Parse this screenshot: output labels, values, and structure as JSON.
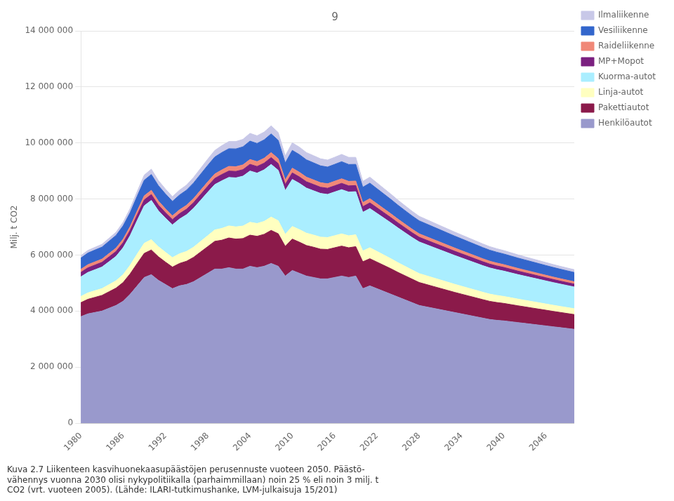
{
  "chart_data": {
    "type": "area",
    "stacked": true,
    "title": "9",
    "ylabel": "Milj. t CO2",
    "annotations": [
      "Kuva 2.7 Liikenteen kasvihuonekaasupäästöjen perusennuste vuoteen 2050. Päästö-",
      "vähennys vuonna 2030 olisi nykypolitiikalla (parhaimmillaan) noin 25 % eli noin 3 milj. t",
      "CO2 (vrt. vuoteen 2005). (Lähde: ILARI-tutkimushanke, LVM-julkaisuja 15/201)"
    ],
    "x": [
      1980,
      1981,
      1982,
      1983,
      1984,
      1985,
      1986,
      1987,
      1988,
      1989,
      1990,
      1991,
      1992,
      1993,
      1994,
      1995,
      1996,
      1997,
      1998,
      1999,
      2000,
      2001,
      2002,
      2003,
      2004,
      2005,
      2006,
      2007,
      2008,
      2009,
      2010,
      2011,
      2012,
      2013,
      2014,
      2015,
      2016,
      2017,
      2018,
      2019,
      2020,
      2021,
      2022,
      2023,
      2024,
      2025,
      2026,
      2027,
      2028,
      2029,
      2030,
      2031,
      2032,
      2033,
      2034,
      2035,
      2036,
      2037,
      2038,
      2039,
      2040,
      2041,
      2042,
      2043,
      2044,
      2045,
      2046,
      2047,
      2048,
      2049,
      2050
    ],
    "series": [
      {
        "name": "Henkilöautot",
        "color": "#9999cc",
        "values": [
          3800000,
          3900000,
          3950000,
          4000000,
          4100000,
          4200000,
          4350000,
          4600000,
          4900000,
          5200000,
          5300000,
          5100000,
          4950000,
          4800000,
          4900000,
          4950000,
          5050000,
          5200000,
          5350000,
          5500000,
          5500000,
          5550000,
          5500000,
          5500000,
          5600000,
          5550000,
          5600000,
          5700000,
          5600000,
          5250000,
          5450000,
          5350000,
          5250000,
          5200000,
          5150000,
          5150000,
          5200000,
          5250000,
          5200000,
          5250000,
          4800000,
          4900000,
          4800000,
          4700000,
          4600000,
          4500000,
          4400000,
          4300000,
          4200000,
          4150000,
          4100000,
          4050000,
          4000000,
          3950000,
          3900000,
          3850000,
          3800000,
          3750000,
          3700000,
          3670000,
          3650000,
          3620000,
          3590000,
          3560000,
          3530000,
          3500000,
          3470000,
          3440000,
          3410000,
          3380000,
          3350000
        ]
      },
      {
        "name": "Pakettiautot",
        "color": "#8b1a4a",
        "values": [
          500000,
          520000,
          540000,
          560000,
          590000,
          620000,
          670000,
          730000,
          800000,
          860000,
          880000,
          840000,
          800000,
          770000,
          800000,
          830000,
          870000,
          910000,
          950000,
          990000,
          1030000,
          1060000,
          1070000,
          1090000,
          1110000,
          1120000,
          1140000,
          1180000,
          1160000,
          1060000,
          1120000,
          1110000,
          1090000,
          1080000,
          1060000,
          1050000,
          1060000,
          1070000,
          1060000,
          1050000,
          960000,
          970000,
          950000,
          930000,
          910000,
          880000,
          860000,
          840000,
          820000,
          800000,
          780000,
          760000,
          740000,
          720000,
          705000,
          690000,
          675000,
          660000,
          648000,
          636000,
          624000,
          612000,
          600000,
          590000,
          580000,
          570000,
          560000,
          550000,
          542000,
          534000,
          526000
        ]
      },
      {
        "name": "Linja-autot",
        "color": "#ffffc0",
        "values": [
          220000,
          228000,
          235000,
          242000,
          252000,
          262000,
          280000,
          305000,
          335000,
          360000,
          370000,
          360000,
          348000,
          338000,
          345000,
          350000,
          360000,
          375000,
          390000,
          405000,
          420000,
          430000,
          435000,
          445000,
          460000,
          455000,
          460000,
          475000,
          465000,
          430000,
          450000,
          448000,
          440000,
          435000,
          430000,
          425000,
          430000,
          435000,
          428000,
          422000,
          385000,
          390000,
          380000,
          368000,
          357000,
          346000,
          335000,
          325000,
          318000,
          312000,
          306000,
          300000,
          294000,
          288000,
          282000,
          276000,
          270000,
          264000,
          258000,
          253000,
          248000,
          243000,
          238000,
          234000,
          230000,
          226000,
          222000,
          218000,
          214000,
          211000,
          208000
        ]
      },
      {
        "name": "Kuorma-autot",
        "color": "#aaeeff",
        "values": [
          700000,
          730000,
          750000,
          770000,
          820000,
          870000,
          960000,
          1060000,
          1200000,
          1340000,
          1400000,
          1280000,
          1220000,
          1170000,
          1240000,
          1310000,
          1390000,
          1470000,
          1550000,
          1620000,
          1700000,
          1730000,
          1750000,
          1780000,
          1830000,
          1800000,
          1840000,
          1880000,
          1800000,
          1560000,
          1680000,
          1650000,
          1610000,
          1580000,
          1560000,
          1540000,
          1560000,
          1580000,
          1560000,
          1540000,
          1380000,
          1400000,
          1360000,
          1320000,
          1280000,
          1240000,
          1200000,
          1160000,
          1130000,
          1110000,
          1090000,
          1070000,
          1050000,
          1030000,
          1010000,
          990000,
          970000,
          950000,
          935000,
          920000,
          905000,
          890000,
          875000,
          862000,
          849000,
          836000,
          823000,
          810000,
          798000,
          787000,
          776000
        ]
      },
      {
        "name": "MP+Mopot",
        "color": "#7b2080",
        "values": [
          160000,
          165000,
          167000,
          168000,
          172000,
          176000,
          183000,
          191000,
          200000,
          208000,
          210000,
          203000,
          195000,
          188000,
          192000,
          196000,
          202000,
          208000,
          214000,
          219000,
          224000,
          228000,
          230000,
          233000,
          238000,
          236000,
          239000,
          244000,
          240000,
          220000,
          232000,
          230000,
          226000,
          224000,
          221000,
          219000,
          221000,
          224000,
          221000,
          219000,
          200000,
          203000,
          197000,
          192000,
          186000,
          181000,
          176000,
          171000,
          167000,
          164000,
          161000,
          158000,
          155000,
          152000,
          149000,
          146000,
          143000,
          140000,
          137000,
          134000,
          131000,
          128000,
          125000,
          122000,
          119000,
          116000,
          113000,
          110000,
          107000,
          105000,
          103000
        ]
      },
      {
        "name": "Raideliikenne",
        "color": "#f08878",
        "values": [
          110000,
          113000,
          114000,
          115000,
          118000,
          121000,
          126000,
          132000,
          140000,
          147000,
          150000,
          145000,
          139000,
          134000,
          137000,
          140000,
          145000,
          150000,
          155000,
          159000,
          163000,
          166000,
          168000,
          170000,
          173000,
          172000,
          174000,
          177000,
          174000,
          160000,
          169000,
          168000,
          165000,
          163000,
          161000,
          160000,
          161000,
          163000,
          161000,
          160000,
          147000,
          149000,
          145000,
          141000,
          137000,
          133000,
          130000,
          127000,
          124000,
          122000,
          120000,
          118000,
          116000,
          114000,
          112000,
          110000,
          108000,
          106000,
          104000,
          102000,
          100000,
          98000,
          96000,
          94000,
          92000,
          90000,
          88000,
          87000,
          86000,
          85000,
          84000
        ]
      },
      {
        "name": "Vesiliikenne",
        "color": "#3366cc",
        "values": [
          400000,
          415000,
          422000,
          428000,
          440000,
          452000,
          472000,
          496000,
          527000,
          555000,
          565000,
          548000,
          530000,
          516000,
          528000,
          540000,
          557000,
          574000,
          590000,
          605000,
          620000,
          630000,
          636000,
          644000,
          655000,
          650000,
          657000,
          667000,
          656000,
          606000,
          634000,
          629000,
          617000,
          610000,
          602000,
          597000,
          603000,
          610000,
          602000,
          596000,
          547000,
          554000,
          539000,
          525000,
          511000,
          497000,
          484000,
          472000,
          462000,
          455000,
          448000,
          441000,
          434000,
          427000,
          420000,
          413000,
          406000,
          399000,
          392000,
          386000,
          380000,
          374000,
          368000,
          363000,
          358000,
          353000,
          348000,
          343000,
          339000,
          335000,
          331000
        ]
      },
      {
        "name": "Ilmaliikenne",
        "color": "#c8c8e8",
        "values": [
          90000,
          94000,
          97000,
          100000,
          107000,
          114000,
          128000,
          145000,
          165000,
          184000,
          191000,
          184000,
          175000,
          168000,
          175000,
          183000,
          196000,
          209000,
          222000,
          235000,
          248000,
          257000,
          262000,
          268000,
          277000,
          274000,
          279000,
          287000,
          279000,
          251000,
          270000,
          267000,
          260000,
          256000,
          252000,
          249000,
          254000,
          260000,
          254000,
          250000,
          210000,
          215000,
          206000,
          197000,
          189000,
          181000,
          174000,
          167000,
          162000,
          158000,
          154000,
          150000,
          146000,
          143000,
          140000,
          137000,
          134000,
          131000,
          128000,
          125000,
          122000,
          119000,
          116000,
          113000,
          111000,
          109000,
          107000,
          105000,
          103000,
          101000,
          99000
        ]
      }
    ],
    "xlim": [
      1980,
      2050
    ],
    "xticks": [
      1980,
      1986,
      1992,
      1998,
      2004,
      2010,
      2016,
      2022,
      2028,
      2034,
      2040,
      2046
    ],
    "ylim": [
      0,
      14000000
    ],
    "yticks": [
      0,
      {
        "value": 2000000,
        "label": "2 000 000"
      },
      {
        "value": 4000000,
        "label": "4 000 000"
      },
      {
        "value": 6000000,
        "label": "6 000 000"
      },
      {
        "value": 8000000,
        "label": "8 000 000"
      },
      {
        "value": 10000000,
        "label": "10 000 000"
      },
      {
        "value": 12000000,
        "label": "12 000 000"
      },
      {
        "value": 14000000,
        "label": "14 000 000"
      }
    ],
    "grid": true,
    "legend": "right"
  }
}
